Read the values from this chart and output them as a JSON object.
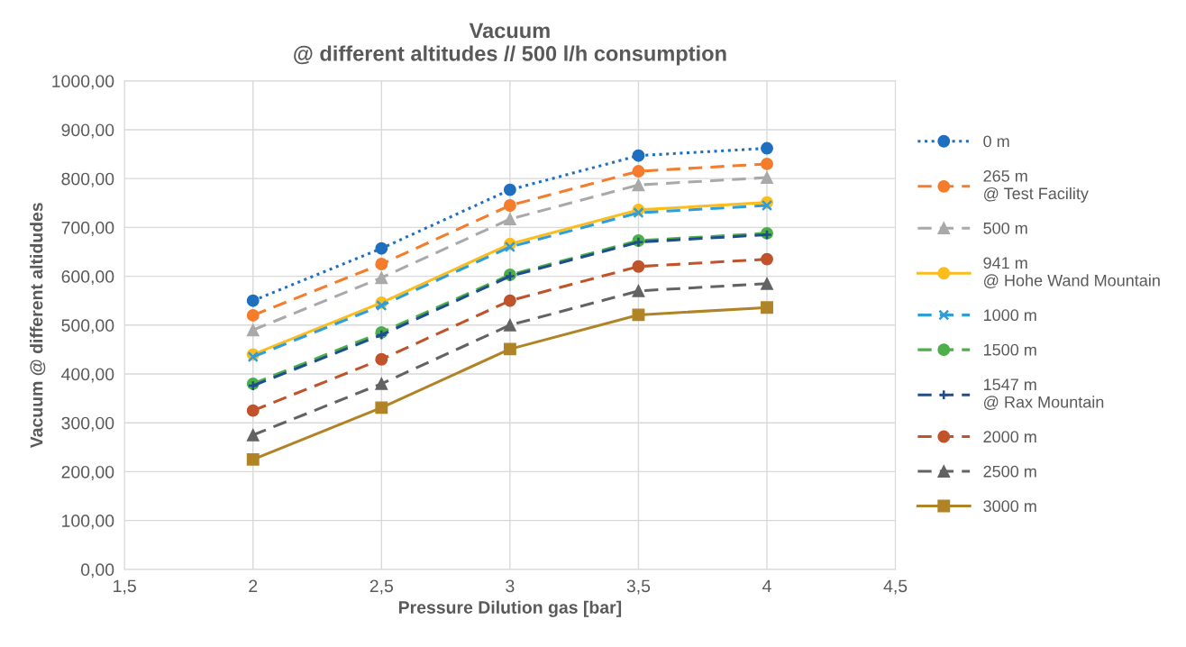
{
  "chart_data": {
    "type": "line",
    "title": "Vacuum\n@ different altitudes // 500 l/h consumption",
    "xlabel": "Pressure Dilution gas [bar]",
    "ylabel": "Vacuum @ different altidudes",
    "x": [
      2,
      2.5,
      3,
      3.5,
      4
    ],
    "xlim": [
      1.5,
      4.5
    ],
    "xticks": [
      {
        "value": 1.5,
        "label": "1,5"
      },
      2,
      {
        "value": 2.5,
        "label": "2,5"
      },
      3,
      {
        "value": 3.5,
        "label": "3,5"
      },
      4,
      {
        "value": 4.5,
        "label": "4,5"
      }
    ],
    "ylim": [
      0,
      1000
    ],
    "yticks": [
      {
        "value": 0,
        "label": "0,00"
      },
      {
        "value": 100,
        "label": "100,00"
      },
      {
        "value": 200,
        "label": "200,00"
      },
      {
        "value": 300,
        "label": "300,00"
      },
      {
        "value": 400,
        "label": "400,00"
      },
      {
        "value": 500,
        "label": "500,00"
      },
      {
        "value": 600,
        "label": "600,00"
      },
      {
        "value": 700,
        "label": "700,00"
      },
      {
        "value": 800,
        "label": "800,00"
      },
      {
        "value": 900,
        "label": "900,00"
      },
      {
        "value": 1000,
        "label": "1000,00"
      }
    ],
    "grid": true,
    "legend": "right",
    "series": [
      {
        "name": "0 m",
        "color": "#1f6fc0",
        "marker": "circle",
        "line_style": "dotted",
        "values": [
          550,
          657,
          777,
          847,
          862
        ]
      },
      {
        "name": "265 m\n@ Test Facility",
        "color": "#f47c2a",
        "marker": "circle",
        "line_style": "dashed",
        "values": [
          520,
          625,
          745,
          815,
          830
        ]
      },
      {
        "name": "500 m",
        "color": "#a9a9a9",
        "marker": "triangle",
        "line_style": "dashed",
        "values": [
          490,
          597,
          717,
          787,
          802
        ]
      },
      {
        "name": "941 m\n@ Hohe Wand Mountain",
        "color": "#fbbd1c",
        "marker": "circle",
        "line_style": "solid",
        "values": [
          440,
          546,
          666,
          736,
          751
        ]
      },
      {
        "name": "1000 m",
        "color": "#2e9ddc",
        "marker": "cross",
        "line_style": "dashed",
        "values": [
          435,
          540,
          660,
          730,
          745
        ]
      },
      {
        "name": "1500 m",
        "color": "#4caf4a",
        "marker": "circle",
        "line_style": "dashed",
        "values": [
          380,
          485,
          603,
          673,
          688
        ]
      },
      {
        "name": "1547 m\n@ Rax Mountain",
        "color": "#1f4e8c",
        "marker": "plus",
        "line_style": "dashed",
        "values": [
          376,
          480,
          600,
          670,
          685
        ]
      },
      {
        "name": "2000 m",
        "color": "#c0532a",
        "marker": "circle",
        "line_style": "dashed",
        "values": [
          325,
          430,
          550,
          620,
          635
        ]
      },
      {
        "name": "2500 m",
        "color": "#636363",
        "marker": "triangle",
        "line_style": "dashed",
        "values": [
          275,
          380,
          500,
          570,
          585
        ]
      },
      {
        "name": "3000 m",
        "color": "#b08426",
        "marker": "square",
        "line_style": "solid",
        "values": [
          225,
          331,
          451,
          521,
          536
        ]
      }
    ]
  }
}
